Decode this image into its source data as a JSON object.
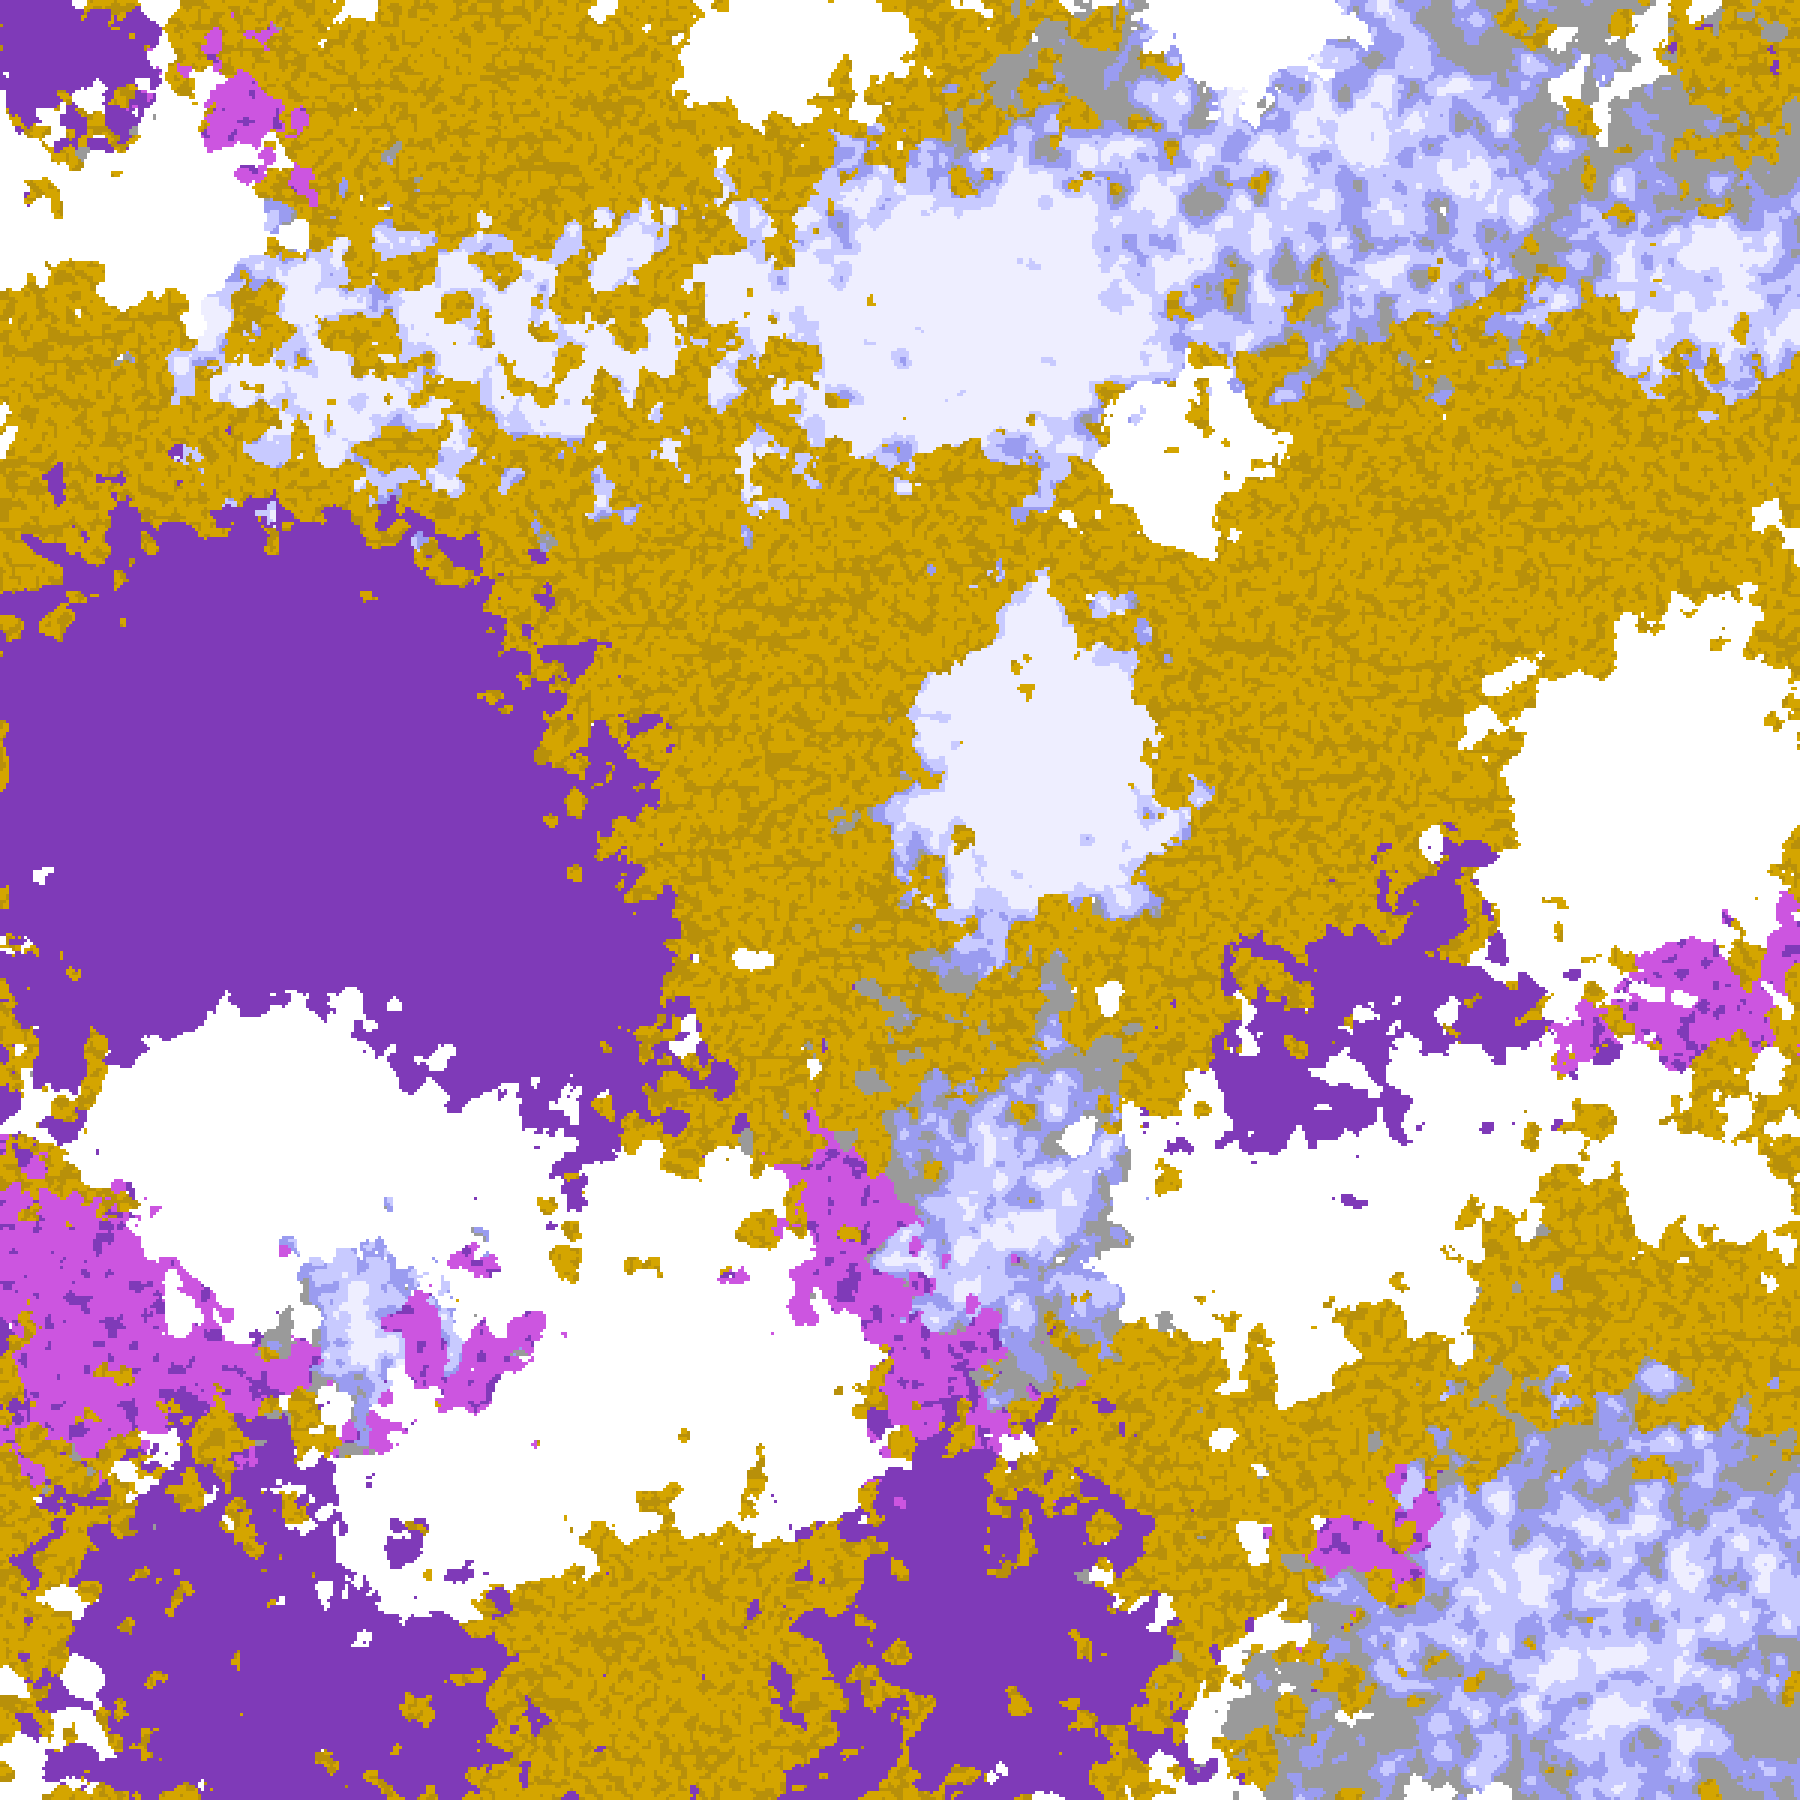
{
  "image": {
    "kind": "false-color satellite cloud classification map",
    "palette": {
      "clear": "#ffffff",
      "low_cloud": "#d4a500",
      "low_cloud_dark": "#b8900a",
      "mid_cloud": "#7f3ab8",
      "high_mid_cloud": "#cc55e0",
      "thin_cirrus": "#9a9a9a",
      "cirrus": "#9a9cf0",
      "thick_cirrus": "#c8caff",
      "deep_convection": "#eeeeff"
    }
  }
}
